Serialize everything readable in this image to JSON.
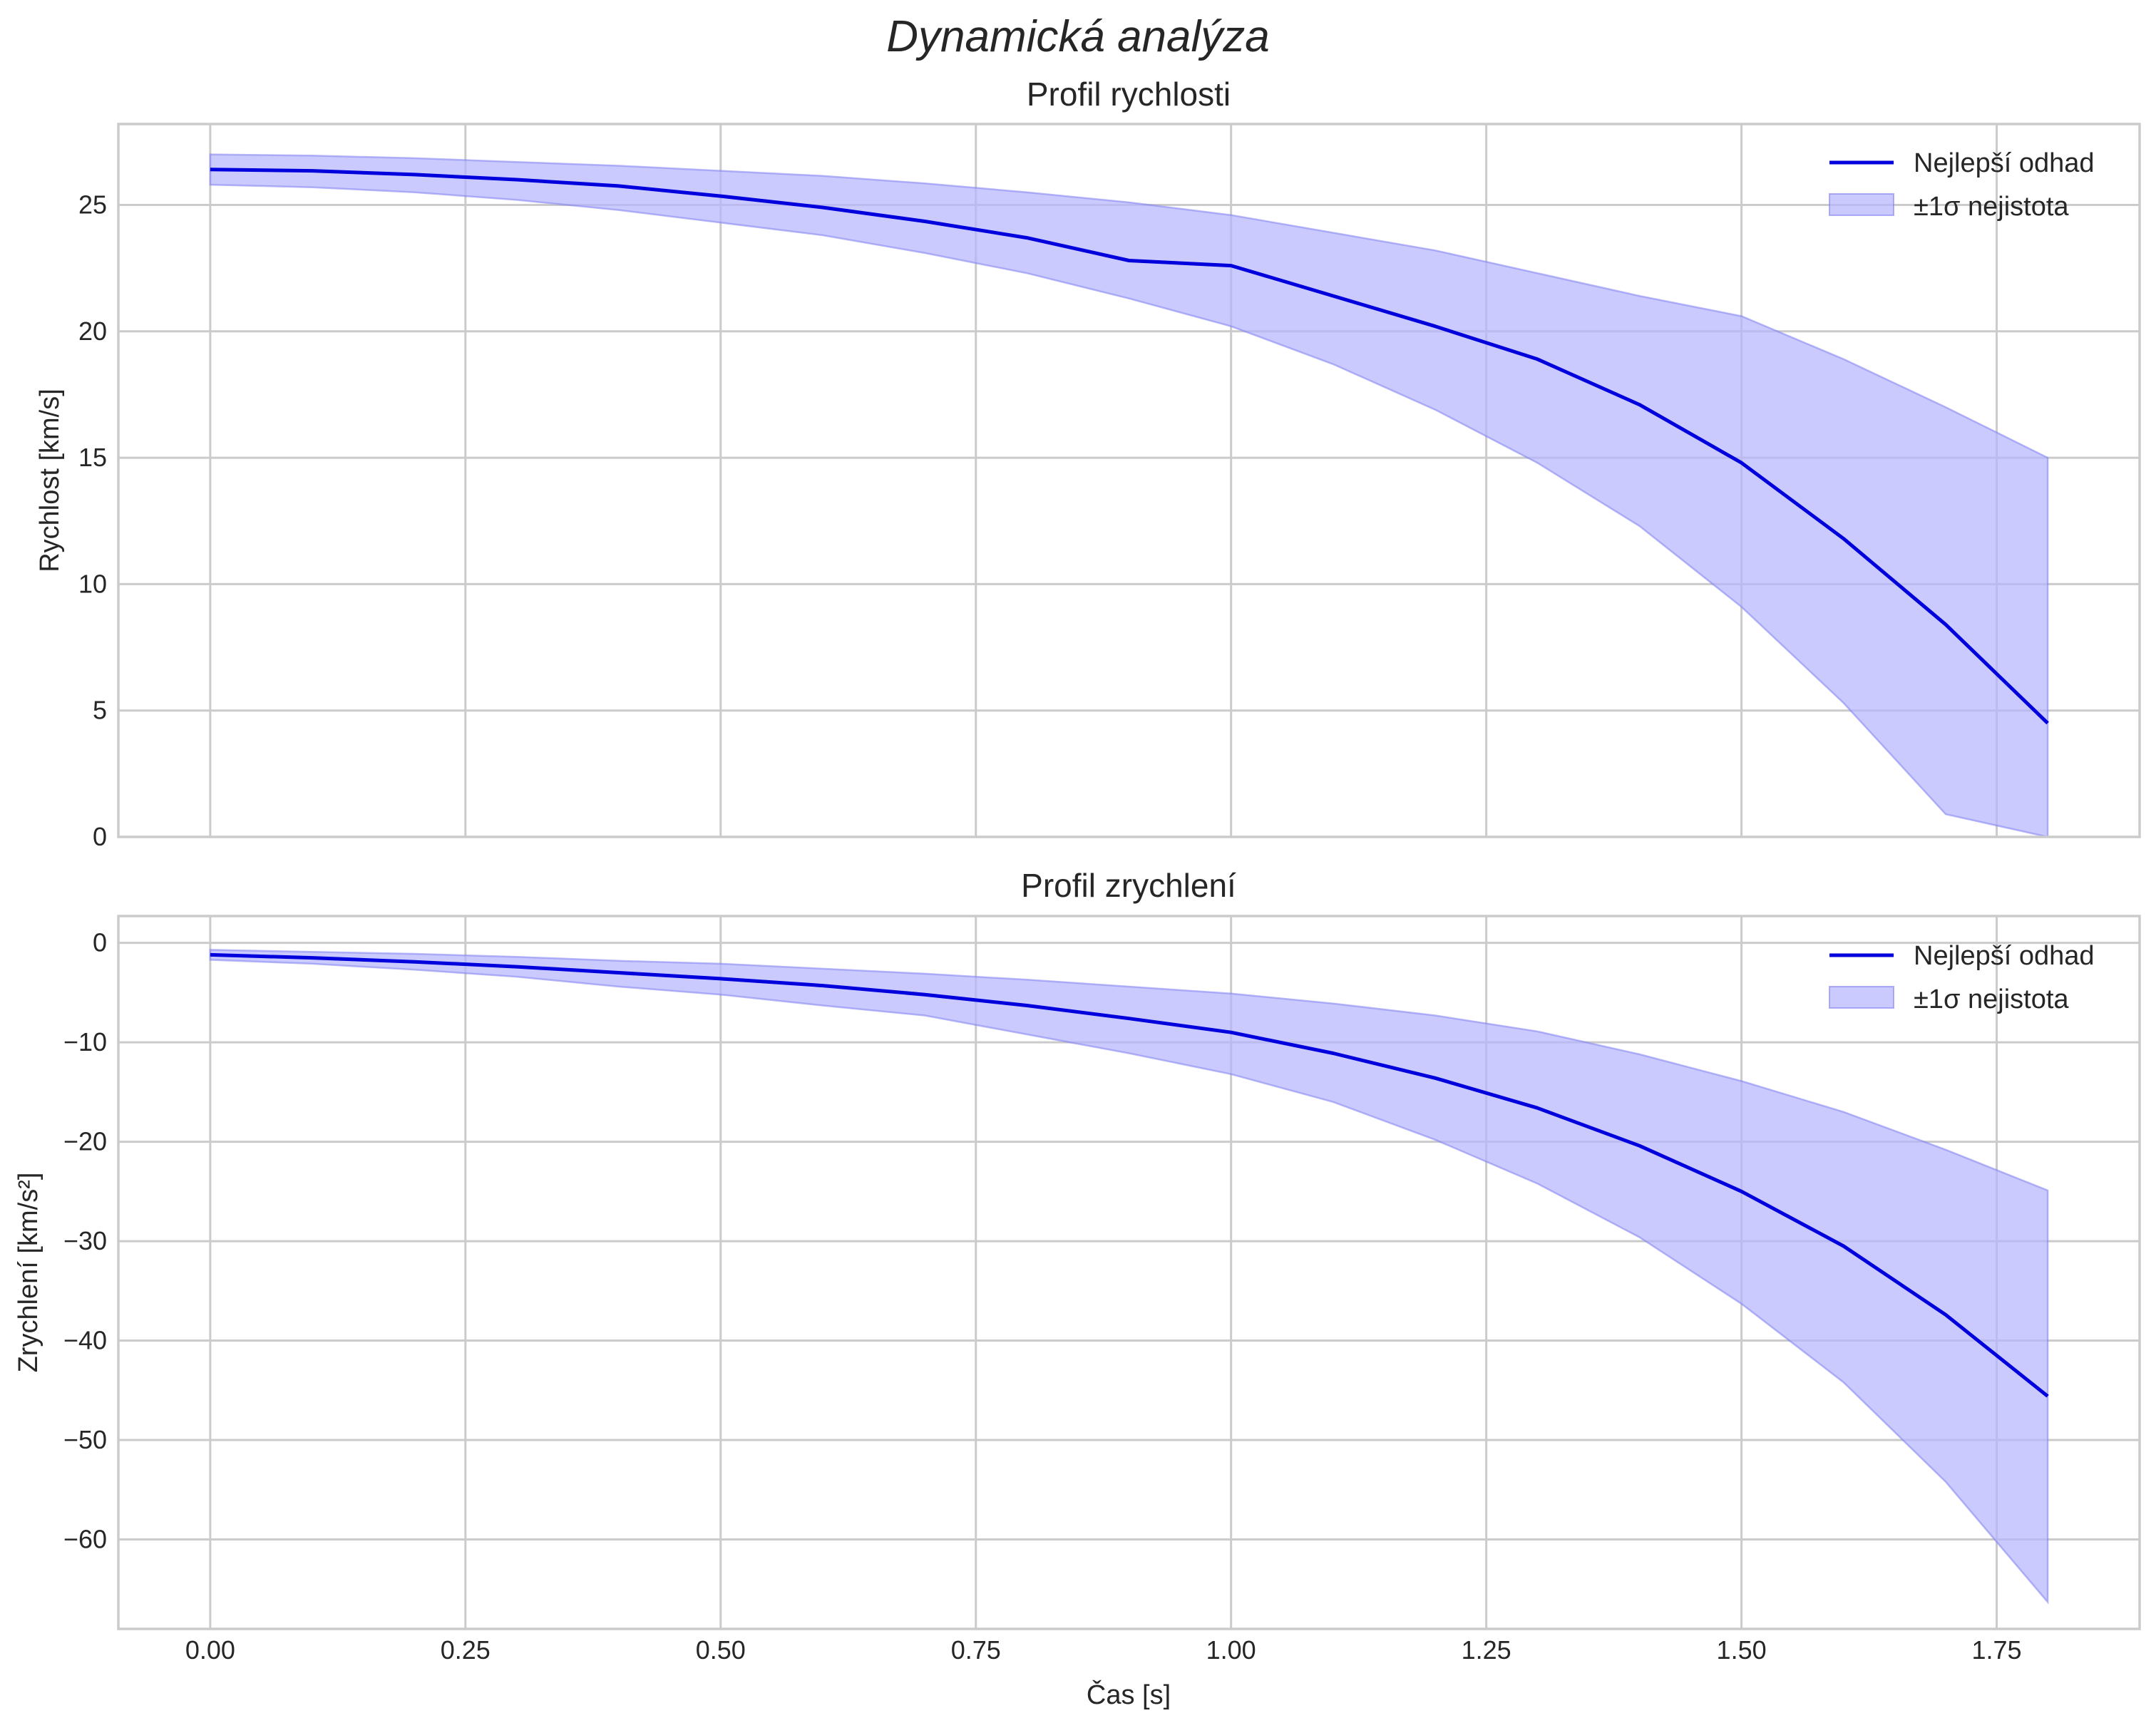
{
  "chart_data": {
    "suptitle": "Dynamická analýza",
    "xlabel": "Čas [s]",
    "xlim": [
      -0.09,
      1.89
    ],
    "xticks": [
      0.0,
      0.25,
      0.5,
      0.75,
      1.0,
      1.25,
      1.5,
      1.75
    ],
    "xtick_labels": [
      "0.00",
      "0.25",
      "0.50",
      "0.75",
      "1.00",
      "1.25",
      "1.50",
      "1.75"
    ],
    "colors": {
      "line": "#0000dd",
      "band": "#b3b3ff"
    },
    "panels": [
      {
        "type": "line",
        "title": "Profil rychlosti",
        "ylabel": "Rychlost [km/s]",
        "ylim": [
          0,
          28.2
        ],
        "yticks": [
          0,
          5,
          10,
          15,
          20,
          25
        ],
        "ytick_labels": [
          "0",
          "5",
          "10",
          "15",
          "20",
          "25"
        ],
        "grid": true,
        "legend_position": "top-right",
        "legend": [
          "Nejlepší odhad",
          "±1σ nejistota"
        ],
        "x": [
          0.0,
          0.1,
          0.2,
          0.3,
          0.4,
          0.5,
          0.6,
          0.7,
          0.8,
          0.9,
          1.0,
          1.1,
          1.2,
          1.3,
          1.4,
          1.5,
          1.6,
          1.7,
          1.8
        ],
        "series": [
          {
            "name": "Nejlepší odhad",
            "values": [
              26.4,
              26.35,
              26.2,
              26.0,
              25.75,
              25.35,
              24.9,
              24.35,
              23.7,
              22.8,
              22.6,
              21.4,
              20.2,
              18.9,
              17.1,
              14.8,
              11.8,
              8.4,
              4.5
            ]
          },
          {
            "name": "±1σ nejistota",
            "lower": [
              25.8,
              25.7,
              25.5,
              25.2,
              24.8,
              24.3,
              23.8,
              23.1,
              22.3,
              21.3,
              20.2,
              18.7,
              16.9,
              14.8,
              12.3,
              9.1,
              5.3,
              0.9,
              0.0
            ],
            "upper": [
              27.0,
              26.95,
              26.85,
              26.7,
              26.55,
              26.35,
              26.15,
              25.85,
              25.5,
              25.1,
              24.6,
              23.9,
              23.2,
              22.3,
              21.4,
              20.6,
              18.9,
              17.0,
              15.0
            ]
          }
        ]
      },
      {
        "type": "line",
        "title": "Profil zrychlení",
        "ylabel": "Zrychlení [km/s²]",
        "ylim": [
          -69,
          2.7
        ],
        "yticks": [
          0,
          -10,
          -20,
          -30,
          -40,
          -50,
          -60
        ],
        "ytick_labels": [
          "0",
          "−10",
          "−20",
          "−30",
          "−40",
          "−50",
          "−60"
        ],
        "grid": true,
        "legend_position": "top-right",
        "legend": [
          "Nejlepší odhad",
          "±1σ nejistota"
        ],
        "x": [
          0.0,
          0.1,
          0.2,
          0.3,
          0.4,
          0.5,
          0.6,
          0.7,
          0.8,
          0.9,
          1.0,
          1.1,
          1.2,
          1.3,
          1.4,
          1.5,
          1.6,
          1.7,
          1.8
        ],
        "series": [
          {
            "name": "Nejlepší odhad",
            "values": [
              -1.2,
              -1.5,
              -1.9,
              -2.4,
              -3.0,
              -3.6,
              -4.3,
              -5.2,
              -6.3,
              -7.6,
              -9.0,
              -11.1,
              -13.6,
              -16.6,
              -20.4,
              -25.0,
              -30.5,
              -37.4,
              -45.6
            ]
          },
          {
            "name": "±1σ nejistota",
            "lower": [
              -1.7,
              -2.1,
              -2.7,
              -3.4,
              -4.4,
              -5.2,
              -6.3,
              -7.3,
              -9.2,
              -11.1,
              -13.2,
              -16.0,
              -19.8,
              -24.2,
              -29.6,
              -36.3,
              -44.2,
              -54.2,
              -66.3
            ],
            "upper": [
              -0.7,
              -0.9,
              -1.1,
              -1.4,
              -1.8,
              -2.1,
              -2.6,
              -3.1,
              -3.7,
              -4.4,
              -5.1,
              -6.1,
              -7.3,
              -8.9,
              -11.2,
              -13.9,
              -17.0,
              -20.8,
              -24.9
            ]
          }
        ]
      }
    ]
  }
}
